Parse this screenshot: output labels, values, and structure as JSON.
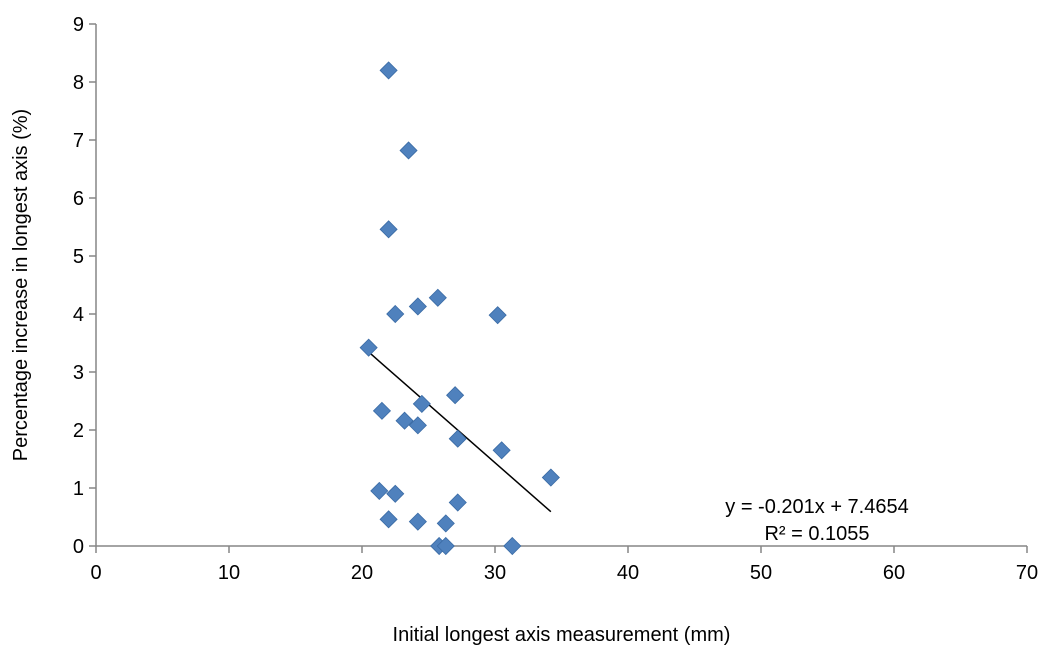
{
  "chart_data": {
    "type": "scatter",
    "title": "",
    "xlabel": "Initial longest axis measurement (mm)",
    "ylabel": "Percentage increase in longest axis (%)",
    "xlim": [
      0,
      70
    ],
    "ylim": [
      0,
      9
    ],
    "x_ticks": [
      0,
      10,
      20,
      30,
      40,
      50,
      60,
      70
    ],
    "y_ticks": [
      0,
      1,
      2,
      3,
      4,
      5,
      6,
      7,
      8,
      9
    ],
    "grid": false,
    "legend": "none",
    "marker": "diamond",
    "marker_color": "#4F81BD",
    "trendline_color": "#000000",
    "points": [
      {
        "x": 22.0,
        "y": 8.2
      },
      {
        "x": 23.5,
        "y": 6.82
      },
      {
        "x": 22.0,
        "y": 5.46
      },
      {
        "x": 25.7,
        "y": 4.28
      },
      {
        "x": 24.2,
        "y": 4.13
      },
      {
        "x": 22.5,
        "y": 4.0
      },
      {
        "x": 30.2,
        "y": 3.98
      },
      {
        "x": 20.5,
        "y": 3.42
      },
      {
        "x": 27.0,
        "y": 2.6
      },
      {
        "x": 24.5,
        "y": 2.45
      },
      {
        "x": 21.5,
        "y": 2.33
      },
      {
        "x": 23.2,
        "y": 2.16
      },
      {
        "x": 24.2,
        "y": 2.08
      },
      {
        "x": 27.2,
        "y": 1.85
      },
      {
        "x": 30.5,
        "y": 1.65
      },
      {
        "x": 34.2,
        "y": 1.18
      },
      {
        "x": 21.3,
        "y": 0.95
      },
      {
        "x": 22.5,
        "y": 0.9
      },
      {
        "x": 27.2,
        "y": 0.75
      },
      {
        "x": 22.0,
        "y": 0.46
      },
      {
        "x": 24.2,
        "y": 0.42
      },
      {
        "x": 26.3,
        "y": 0.39
      },
      {
        "x": 25.8,
        "y": 0.0
      },
      {
        "x": 26.3,
        "y": 0.0
      },
      {
        "x": 31.3,
        "y": 0.0
      }
    ],
    "trendline": {
      "slope": -0.201,
      "intercept": 7.4654,
      "x_range": [
        20.5,
        34.2
      ],
      "equation_label": "y = -0.201x + 7.4654",
      "r_squared_label": "R² = 0.1055"
    }
  }
}
